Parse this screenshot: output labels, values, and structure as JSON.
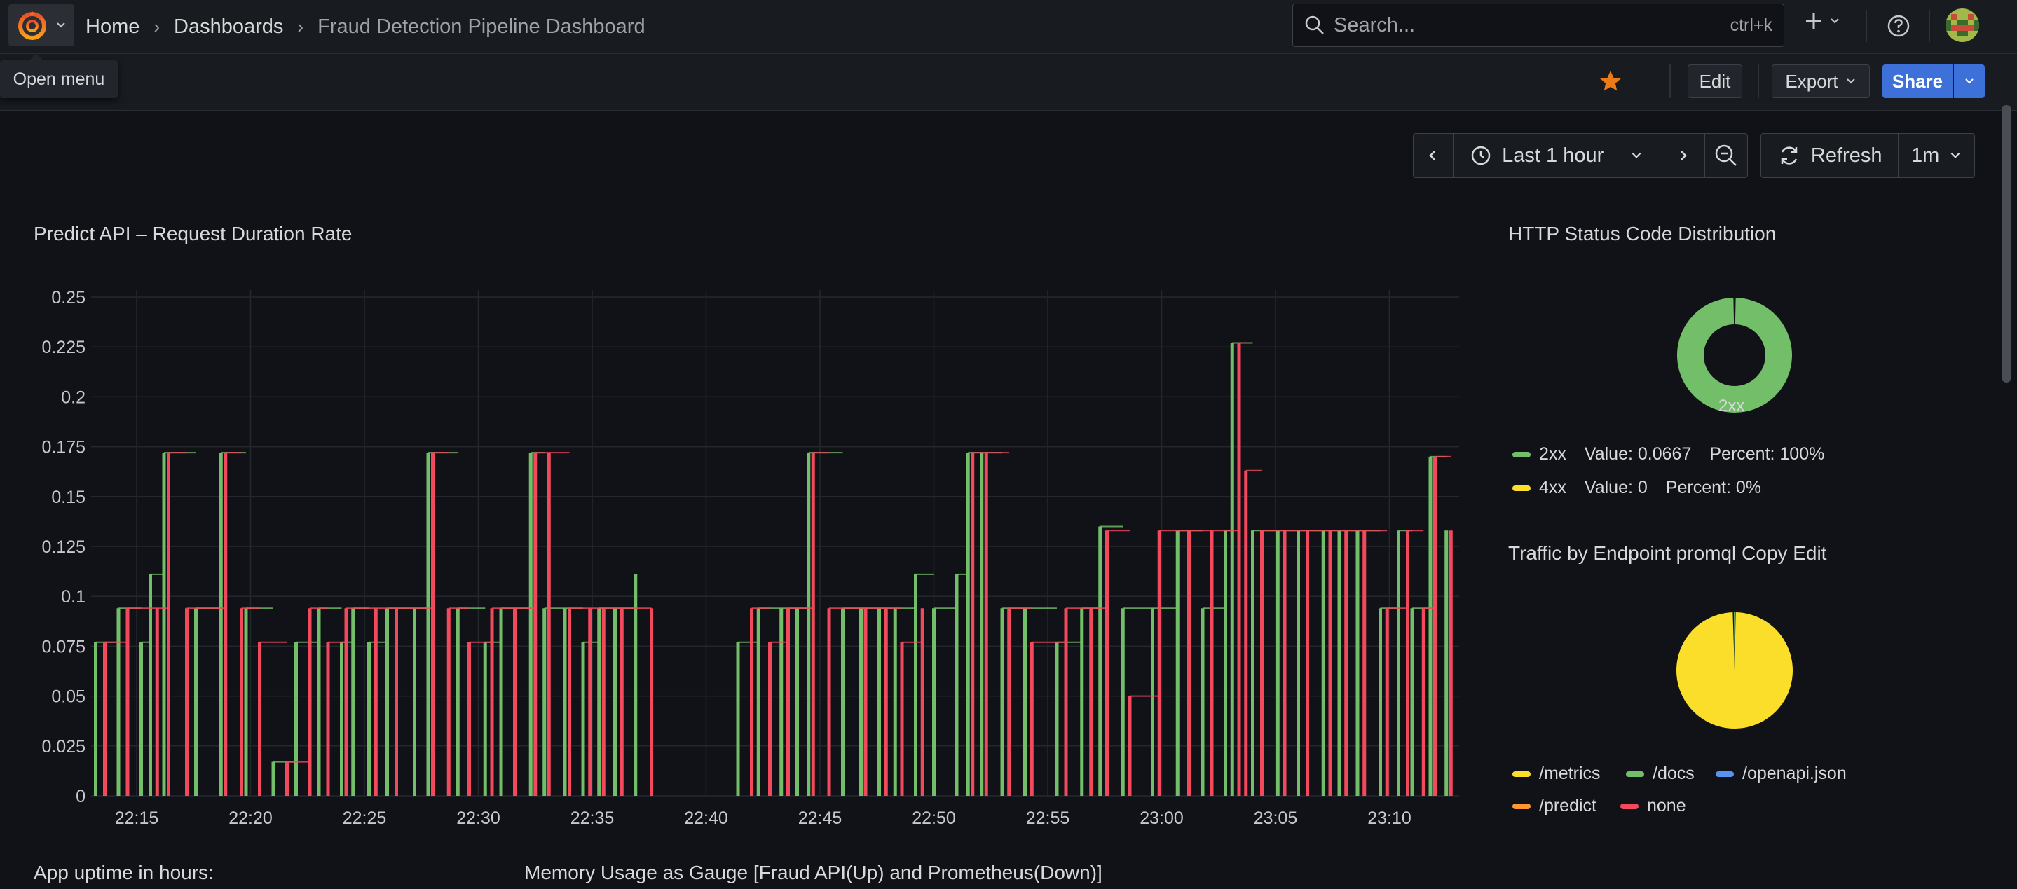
{
  "nav": {
    "breadcrumbs": [
      "Home",
      "Dashboards",
      "Fraud Detection Pipeline Dashboard"
    ],
    "search_placeholder": "Search...",
    "search_shortcut": "ctrl+k",
    "tooltip": "Open menu"
  },
  "toolbar": {
    "edit_label": "Edit",
    "export_label": "Export",
    "share_label": "Share"
  },
  "time": {
    "range_label": "Last 1 hour",
    "refresh_label": "Refresh",
    "interval_label": "1m"
  },
  "panels": {
    "duration": {
      "title": "Predict API – Request Duration Rate"
    },
    "status": {
      "title": "HTTP Status Code Distribution",
      "slice_label": "2xx",
      "legend": [
        {
          "name": "2xx",
          "value": "Value: 0.0667",
          "percent": "Percent: 100%",
          "color": "#73bf69"
        },
        {
          "name": "4xx",
          "value": "Value: 0",
          "percent": "Percent: 0%",
          "color": "#fade2a"
        }
      ]
    },
    "traffic": {
      "title": "Traffic by Endpoint promql Copy Edit",
      "legend": [
        {
          "name": "/metrics",
          "color": "#fade2a"
        },
        {
          "name": "/docs",
          "color": "#73bf69"
        },
        {
          "name": "/openapi.json",
          "color": "#5794f2"
        },
        {
          "name": "/predict",
          "color": "#ff9830"
        },
        {
          "name": "none",
          "color": "#f2495c"
        }
      ]
    },
    "uptime": {
      "title": "App uptime in hours:"
    },
    "memory": {
      "title": "Memory Usage as Gauge [Fraud API(Up) and Prometheus(Down)]"
    }
  },
  "chart_data": [
    {
      "type": "bar",
      "title": "Predict API – Request Duration Rate",
      "ylim": [
        0,
        0.25
      ],
      "yticks": [
        "0",
        "0.025",
        "0.05",
        "0.075",
        "0.1",
        "0.125",
        "0.15",
        "0.175",
        "0.2",
        "0.225",
        "0.25"
      ],
      "xticks": [
        "22:15",
        "22:20",
        "22:25",
        "22:30",
        "22:35",
        "22:40",
        "22:45",
        "22:50",
        "22:55",
        "23:00",
        "23:05",
        "23:10"
      ],
      "xstart": "22:13",
      "colors": {
        "green": "#73bf69",
        "red": "#f2495c"
      },
      "series": [
        {
          "name": "",
          "color": "green",
          "points": [
            [
              "22:13.2",
              0.077
            ],
            [
              "22:14.2",
              0.094
            ],
            [
              "22:15.2",
              0.077
            ],
            [
              "22:15.6",
              0.111
            ],
            [
              "22:16.2",
              0.172
            ],
            [
              "22:17.6",
              0.094
            ],
            [
              "22:18.7",
              0.172
            ],
            [
              "22:19.8",
              0.094
            ],
            [
              "22:21.0",
              0.017
            ],
            [
              "22:22.0",
              0.077
            ],
            [
              "22:23.0",
              0.094
            ],
            [
              "22:24.0",
              0.077
            ],
            [
              "22:24.5",
              0.094
            ],
            [
              "22:25.2",
              0.077
            ],
            [
              "22:26.0",
              0.094
            ],
            [
              "22:27.2",
              0.094
            ],
            [
              "22:27.8",
              0.172
            ],
            [
              "22:29.1",
              0.094
            ],
            [
              "22:30.3",
              0.077
            ],
            [
              "22:31.0",
              0.094
            ],
            [
              "22:32.3",
              0.172
            ],
            [
              "22:32.9",
              0.094
            ],
            [
              "22:33.8",
              0.094
            ],
            [
              "22:34.6",
              0.077
            ],
            [
              "22:35.3",
              0.094
            ],
            [
              "22:36.0",
              0.094
            ],
            [
              "22:36.9",
              0.111
            ],
            [
              "22:41.4",
              0.077
            ],
            [
              "22:42.3",
              0.094
            ],
            [
              "22:43.3",
              0.094
            ],
            [
              "22:44.0",
              0.094
            ],
            [
              "22:44.5",
              0.172
            ],
            [
              "22:46.0",
              0.094
            ],
            [
              "22:46.8",
              0.094
            ],
            [
              "22:47.6",
              0.094
            ],
            [
              "22:48.3",
              0.094
            ],
            [
              "22:49.2",
              0.111
            ],
            [
              "22:50.0",
              0.094
            ],
            [
              "22:51.0",
              0.111
            ],
            [
              "22:51.5",
              0.172
            ],
            [
              "22:52.1",
              0.172
            ],
            [
              "22:53.0",
              0.094
            ],
            [
              "22:54.0",
              0.094
            ],
            [
              "22:55.4",
              0.077
            ],
            [
              "22:56.5",
              0.094
            ],
            [
              "22:57.3",
              0.135
            ],
            [
              "22:58.3",
              0.094
            ],
            [
              "22:59.6",
              0.094
            ],
            [
              "23:00.7",
              0.133
            ],
            [
              "23:01.8",
              0.094
            ],
            [
              "23:02.8",
              0.133
            ],
            [
              "23:03.1",
              0.227
            ],
            [
              "23:04.0",
              0.133
            ],
            [
              "23:05.1",
              0.133
            ],
            [
              "23:06.0",
              0.133
            ],
            [
              "23:07.1",
              0.133
            ],
            [
              "23:07.8",
              0.133
            ],
            [
              "23:08.6",
              0.133
            ],
            [
              "23:09.6",
              0.094
            ],
            [
              "23:10.4",
              0.133
            ],
            [
              "23:11.0",
              0.094
            ],
            [
              "23:11.8",
              0.17
            ],
            [
              "23:12.5",
              0.133
            ]
          ]
        },
        {
          "name": "",
          "color": "red",
          "points": [
            [
              "22:13.6",
              0.077
            ],
            [
              "22:14.6",
              0.094
            ],
            [
              "22:15.9",
              0.094
            ],
            [
              "22:16.4",
              0.172
            ],
            [
              "22:17.2",
              0.094
            ],
            [
              "22:18.9",
              0.172
            ],
            [
              "22:19.6",
              0.094
            ],
            [
              "22:20.4",
              0.077
            ],
            [
              "22:21.6",
              0.017
            ],
            [
              "22:22.6",
              0.094
            ],
            [
              "22:23.4",
              0.077
            ],
            [
              "22:24.2",
              0.094
            ],
            [
              "22:25.5",
              0.094
            ],
            [
              "22:26.4",
              0.094
            ],
            [
              "22:28.0",
              0.172
            ],
            [
              "22:28.7",
              0.094
            ],
            [
              "22:29.6",
              0.077
            ],
            [
              "22:30.6",
              0.094
            ],
            [
              "22:31.6",
              0.094
            ],
            [
              "22:32.5",
              0.172
            ],
            [
              "22:33.1",
              0.172
            ],
            [
              "22:34.0",
              0.094
            ],
            [
              "22:34.9",
              0.094
            ],
            [
              "22:35.5",
              0.094
            ],
            [
              "22:36.3",
              0.094
            ],
            [
              "22:37.6",
              0.094
            ],
            [
              "22:42.0",
              0.094
            ],
            [
              "22:42.8",
              0.077
            ],
            [
              "22:43.6",
              0.094
            ],
            [
              "22:44.7",
              0.172
            ],
            [
              "22:45.4",
              0.094
            ],
            [
              "22:47.0",
              0.094
            ],
            [
              "22:47.9",
              0.094
            ],
            [
              "22:48.6",
              0.077
            ],
            [
              "22:49.5",
              0.094
            ],
            [
              "22:51.7",
              0.172
            ],
            [
              "22:52.3",
              0.172
            ],
            [
              "22:53.3",
              0.094
            ],
            [
              "22:54.3",
              0.077
            ],
            [
              "22:55.8",
              0.094
            ],
            [
              "22:56.9",
              0.094
            ],
            [
              "22:57.6",
              0.133
            ],
            [
              "22:58.6",
              0.05
            ],
            [
              "22:59.9",
              0.133
            ],
            [
              "23:01.2",
              0.133
            ],
            [
              "23:02.2",
              0.133
            ],
            [
              "23:03.4",
              0.227
            ],
            [
              "23:03.7",
              0.163
            ],
            [
              "23:04.4",
              0.133
            ],
            [
              "23:05.4",
              0.133
            ],
            [
              "23:06.4",
              0.133
            ],
            [
              "23:07.4",
              0.133
            ],
            [
              "23:08.1",
              0.133
            ],
            [
              "23:08.9",
              0.133
            ],
            [
              "23:09.9",
              0.094
            ],
            [
              "23:10.8",
              0.133
            ],
            [
              "23:11.5",
              0.094
            ],
            [
              "23:12.0",
              0.17
            ],
            [
              "23:12.7",
              0.133
            ]
          ]
        }
      ]
    },
    {
      "type": "pie",
      "title": "HTTP Status Code Distribution",
      "donut": true,
      "slices": [
        {
          "name": "2xx",
          "value": 0.0667,
          "color": "#73bf69"
        },
        {
          "name": "4xx",
          "value": 0,
          "color": "#fade2a"
        }
      ]
    },
    {
      "type": "pie",
      "title": "Traffic by Endpoint promql Copy Edit",
      "donut": false,
      "slices": [
        {
          "name": "/metrics",
          "value": 99.5,
          "color": "#fade2a"
        },
        {
          "name": "/docs",
          "value": 0.5,
          "color": "#73bf69"
        },
        {
          "name": "/openapi.json",
          "value": 0,
          "color": "#5794f2"
        },
        {
          "name": "/predict",
          "value": 0,
          "color": "#ff9830"
        },
        {
          "name": "none",
          "value": 0,
          "color": "#f2495c"
        }
      ]
    }
  ]
}
